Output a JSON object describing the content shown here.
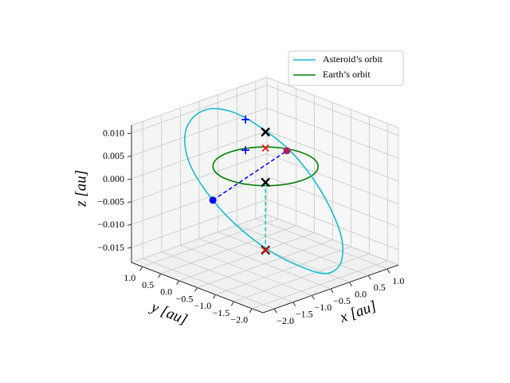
{
  "chart_data": {
    "type": "line3d",
    "xlabel": "x [au]",
    "ylabel": "y [au]",
    "zlabel": "z [au]",
    "xlim": [
      -2.3,
      1.3
    ],
    "ylim": [
      -2.3,
      1.3
    ],
    "zlim": [
      -0.0183,
      0.0117
    ],
    "xticks": [
      {
        "value": -2.0,
        "label": "−2.0"
      },
      {
        "value": -1.5,
        "label": "−1.5"
      },
      {
        "value": -1.0,
        "label": "−1.0"
      },
      {
        "value": -0.5,
        "label": "−0.5"
      },
      {
        "value": 0.0,
        "label": "0.0"
      },
      {
        "value": 0.5,
        "label": "0.5"
      },
      {
        "value": 1.0,
        "label": "1.0"
      }
    ],
    "yticks": [
      {
        "value": -2.0,
        "label": "−2.0"
      },
      {
        "value": -1.5,
        "label": "−1.5"
      },
      {
        "value": -1.0,
        "label": "−1.0"
      },
      {
        "value": -0.5,
        "label": "−0.5"
      },
      {
        "value": 0.0,
        "label": "0.0"
      },
      {
        "value": 0.5,
        "label": "0.5"
      },
      {
        "value": 1.0,
        "label": "1.0"
      }
    ],
    "zticks": [
      {
        "value": -0.015,
        "label": "−0.015"
      },
      {
        "value": -0.01,
        "label": "−0.010"
      },
      {
        "value": -0.005,
        "label": "−0.005"
      },
      {
        "value": 0.0,
        "label": "0.000"
      },
      {
        "value": 0.005,
        "label": "0.005"
      },
      {
        "value": 0.01,
        "label": "0.010"
      }
    ],
    "grid": true,
    "legend": "upper right",
    "series": [
      {
        "name": "Asteroid’s orbit",
        "color": "#17becf",
        "x": [
          -0.77,
          -1.0,
          -1.09,
          -1.0,
          -0.71,
          -0.36,
          0.07,
          0.5,
          0.82,
          1.01,
          1.03,
          0.87,
          0.61,
          0.29,
          -0.14,
          -0.46
        ],
        "y": [
          0.77,
          1.0,
          1.09,
          1.0,
          0.71,
          0.36,
          -0.07,
          -0.5,
          -0.82,
          -1.01,
          -1.03,
          -0.87,
          -0.61,
          -0.29,
          0.14,
          0.46
        ],
        "z": [
          0.0124,
          0.0101,
          0.0057,
          -0.0004,
          -0.0075,
          -0.0134,
          -0.0186,
          -0.022,
          -0.0233,
          -0.0211,
          -0.0158,
          -0.0089,
          -0.0019,
          0.0041,
          0.0093,
          0.0119
        ]
      },
      {
        "name": "Earth’s orbit",
        "color": "#008000",
        "x": [
          1.0,
          0.87,
          0.5,
          0.0,
          -0.5,
          -0.87,
          -1.0,
          -0.87,
          -0.5,
          0.0,
          0.5,
          0.87
        ],
        "y": [
          0.0,
          0.5,
          0.87,
          1.0,
          0.87,
          0.5,
          0.0,
          -0.5,
          -0.87,
          -1.0,
          -0.87,
          -0.5
        ],
        "z": [
          0,
          0,
          0,
          0,
          0,
          0,
          0,
          0,
          0,
          0,
          0,
          0
        ]
      }
    ],
    "markers": [
      {
        "x": 0.0,
        "y": 0.0,
        "z": 0.0075,
        "marker": "X",
        "color": "#000000"
      },
      {
        "x": 0.0,
        "y": 0.0,
        "z": 0.004,
        "marker": "x",
        "color": "#ff0000"
      },
      {
        "x": 0.0,
        "y": 0.0,
        "z": -0.0035,
        "marker": "X",
        "color": "#000000"
      },
      {
        "x": 0.0,
        "y": 0.0,
        "z": -0.0183,
        "marker": "X",
        "color": "#000000"
      },
      {
        "x": 0.0,
        "y": 0.0,
        "z": -0.0183,
        "marker": "x",
        "color": "#ff0000"
      },
      {
        "x": -0.27,
        "y": 0.27,
        "z": 0.0102,
        "marker": "+",
        "color": "#0000ff"
      },
      {
        "x": -0.27,
        "y": 0.27,
        "z": 0.0035,
        "marker": "+",
        "color": "#0000ff"
      },
      {
        "x": -0.71,
        "y": 0.71,
        "z": -0.0075,
        "marker": "o",
        "color": "#0000ff"
      },
      {
        "x": 0.86,
        "y": 0.3,
        "z": 0.0,
        "marker": "o",
        "color": "#b0206a"
      }
    ]
  }
}
